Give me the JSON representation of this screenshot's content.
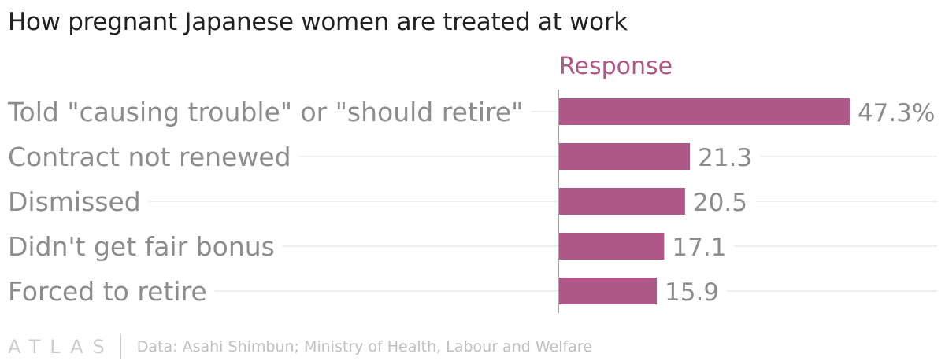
{
  "colors": {
    "bar": "#ad5886",
    "series_title": "#ad5886",
    "labels": "#8c8c8c",
    "gridline": "#e8e8e8",
    "axis": "#888888"
  },
  "chart_data": {
    "type": "bar",
    "orientation": "horizontal",
    "title": "How pregnant Japanese women are treated at work",
    "categories": [
      "Told \"causing trouble\" or \"should retire\"",
      "Contract not renewed",
      "Dismissed",
      "Didn't get fair bonus",
      "Forced to retire"
    ],
    "series": [
      {
        "name": "Response",
        "values": [
          47.3,
          21.3,
          20.5,
          17.1,
          15.9
        ]
      }
    ],
    "value_labels": [
      "47.3%",
      "21.3",
      "20.5",
      "17.1",
      "15.9"
    ],
    "xlim": [
      0,
      50
    ],
    "grid": true,
    "legend": "top"
  },
  "footer": {
    "logo": "ATLAS",
    "source": "Data: Asahi Shimbun; Ministry of Health, Labour and Welfare"
  }
}
